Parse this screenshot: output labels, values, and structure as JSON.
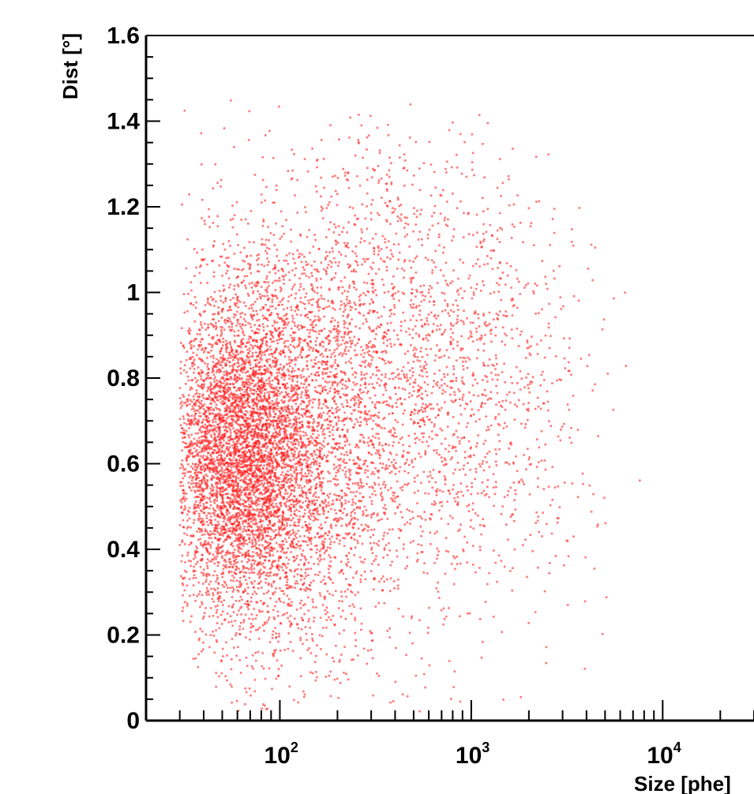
{
  "chart_data": {
    "type": "scatter",
    "title": "",
    "xlabel": "Size [phe]",
    "ylabel": "Dist [°]",
    "x_scale": "log",
    "xlim": [
      20,
      30000
    ],
    "ylim": [
      0,
      1.6
    ],
    "x_tick_labels": [
      {
        "value": 100,
        "base": "10",
        "exp": "2"
      },
      {
        "value": 1000,
        "base": "10",
        "exp": "3"
      },
      {
        "value": 10000,
        "base": "10",
        "exp": "4"
      }
    ],
    "y_ticks": [
      0,
      0.2,
      0.4,
      0.6,
      0.8,
      1,
      1.2,
      1.4,
      1.6
    ],
    "y_tick_labels": [
      "0",
      "0.2",
      "0.4",
      "0.6",
      "0.8",
      "1",
      "1.2",
      "1.4",
      "1.6"
    ],
    "grid": false,
    "legend": "none",
    "series": [
      {
        "color": "#ff2020",
        "approx_points": 9000,
        "density_clusters": [
          {
            "x_center": 60,
            "y_center": 0.62,
            "x_spread_decades": 0.2,
            "y_spread": 0.18,
            "weight": 0.4
          },
          {
            "x_center": 100,
            "y_center": 0.65,
            "x_spread_decades": 0.3,
            "y_spread": 0.25,
            "weight": 0.35
          },
          {
            "x_center": 350,
            "y_center": 0.8,
            "x_spread_decades": 0.35,
            "y_spread": 0.3,
            "weight": 0.18
          },
          {
            "x_center": 1200,
            "y_center": 0.75,
            "x_spread_decades": 0.3,
            "y_spread": 0.25,
            "weight": 0.07
          }
        ],
        "x_min": 30,
        "y_range": [
          0.02,
          1.45
        ]
      }
    ]
  }
}
